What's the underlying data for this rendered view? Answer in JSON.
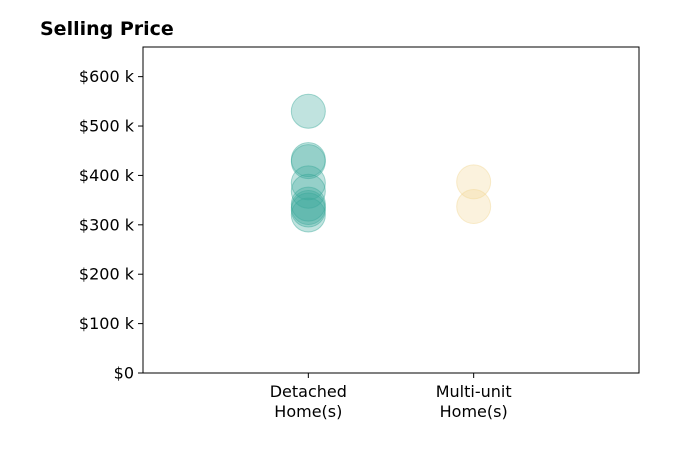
{
  "chart_data": {
    "type": "scatter",
    "title": "Selling Price",
    "xlabel": "",
    "ylabel": "",
    "categories": [
      "Detached\nHome(s)",
      "Multi-unit\nHome(s)"
    ],
    "xlim": [
      0,
      3
    ],
    "ylim": [
      0,
      660000
    ],
    "y_ticks": [
      {
        "value": 0,
        "label": "$0"
      },
      {
        "value": 100000,
        "label": "$100 k"
      },
      {
        "value": 200000,
        "label": "$200 k"
      },
      {
        "value": 300000,
        "label": "$300 k"
      },
      {
        "value": 400000,
        "label": "$400 k"
      },
      {
        "value": 500000,
        "label": "$500 k"
      },
      {
        "value": 600000,
        "label": "$600 k"
      }
    ],
    "grid": false,
    "series": [
      {
        "category_index": 0,
        "color": "#3aa89a",
        "values": [
          530000,
          432000,
          428000,
          385000,
          368000,
          342000,
          335000,
          330000,
          320000
        ]
      },
      {
        "category_index": 1,
        "color": "#f2d795",
        "values": [
          387000,
          337000
        ]
      }
    ]
  }
}
